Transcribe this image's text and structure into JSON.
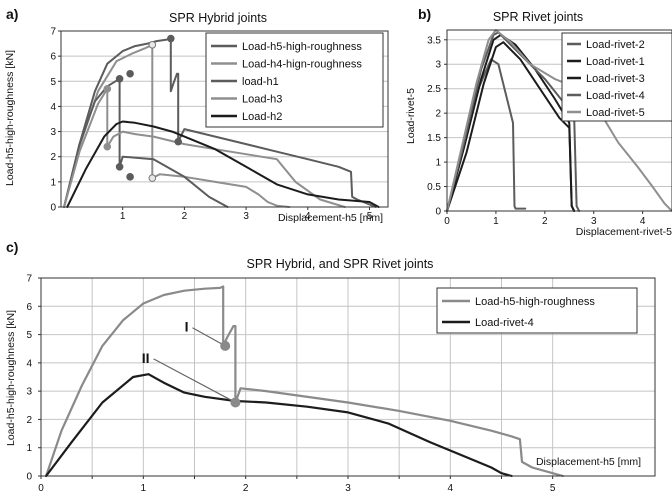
{
  "colors": {
    "grey_dark": "#5c5c5c",
    "grey_light": "#8f8f8f",
    "black": "#1c1c1c",
    "marker_hollow": "#e8e8e8"
  },
  "chart_data": [
    {
      "type": "line",
      "panel_label": "a)",
      "title": "SPR  Hybrid joints",
      "xlabel": "Displacement-h5 [mm]",
      "ylabel": "Load-h5-high-roughness [kN]",
      "xlim": [
        0,
        5.3
      ],
      "ylim": [
        0,
        7
      ],
      "xticks": [
        1,
        2,
        3,
        4,
        5
      ],
      "yticks": [
        0,
        1,
        2,
        3,
        4,
        5,
        6,
        7
      ],
      "grid": "horizontal",
      "legend_position": "top-right",
      "series": [
        {
          "name": "Load-h5-high-roughness",
          "color": "#5c5c5c",
          "width": 2,
          "x": [
            0.05,
            0.3,
            0.55,
            0.75,
            1.0,
            1.2,
            1.4,
            1.55,
            1.7,
            1.78,
            1.78,
            1.82,
            1.88,
            1.9,
            1.9,
            2.0,
            2.5,
            3.0,
            3.5,
            4.0,
            4.5,
            4.7,
            4.72,
            4.8,
            5.0,
            5.1
          ],
          "y": [
            0,
            2.5,
            4.6,
            5.7,
            6.2,
            6.4,
            6.5,
            6.6,
            6.65,
            6.7,
            4.6,
            4.9,
            5.3,
            5.3,
            2.6,
            3.1,
            2.8,
            2.5,
            2.2,
            1.9,
            1.6,
            1.4,
            0.4,
            0.3,
            0.1,
            0
          ]
        },
        {
          "name": "Load-h4-hign-roughness",
          "color": "#8f8f8f",
          "width": 2,
          "x": [
            0.05,
            0.3,
            0.6,
            0.9,
            1.15,
            1.35,
            1.48,
            1.48,
            1.6,
            2.0,
            2.5,
            3.0,
            3.2,
            3.35,
            3.5,
            3.7
          ],
          "y": [
            0,
            2.4,
            4.6,
            5.8,
            6.1,
            6.3,
            6.45,
            1.15,
            1.3,
            1.2,
            1.0,
            0.8,
            0.5,
            0.2,
            0.05,
            0
          ]
        },
        {
          "name": "load-h1",
          "color": "#5c5c5c",
          "width": 2,
          "x": [
            0.05,
            0.3,
            0.55,
            0.75,
            0.95,
            0.95,
            1.0,
            1.5,
            2.0,
            2.4,
            2.7
          ],
          "y": [
            0,
            2.5,
            4.2,
            4.8,
            5.1,
            1.6,
            2.0,
            1.9,
            1.2,
            0.4,
            0
          ]
        },
        {
          "name": "Load-h3",
          "color": "#8f8f8f",
          "width": 2,
          "x": [
            0.05,
            0.3,
            0.6,
            0.75,
            0.75,
            0.85,
            1.0,
            1.2,
            1.5,
            2.0,
            2.5,
            3.0,
            3.5,
            3.8,
            4.2,
            4.6
          ],
          "y": [
            0,
            2.2,
            4.1,
            4.7,
            2.4,
            2.8,
            3.0,
            2.9,
            2.8,
            2.5,
            2.3,
            2.1,
            1.9,
            1.0,
            0.3,
            0
          ]
        },
        {
          "name": "Load-h2",
          "color": "#1c1c1c",
          "width": 2,
          "x": [
            0.1,
            0.4,
            0.7,
            0.9,
            1.0,
            1.2,
            1.5,
            1.8,
            2.0,
            2.5,
            3.0,
            3.5,
            4.0,
            4.5,
            5.0,
            5.15
          ],
          "y": [
            0,
            1.5,
            2.8,
            3.3,
            3.4,
            3.35,
            3.2,
            3.0,
            2.8,
            2.3,
            1.6,
            0.9,
            0.5,
            0.3,
            0.2,
            0
          ]
        }
      ],
      "markers": [
        {
          "x": 1.78,
          "y": 6.7,
          "series": "Load-h5-high-roughness"
        },
        {
          "x": 1.9,
          "y": 2.6,
          "series": "Load-h5-high-roughness"
        },
        {
          "x": 1.48,
          "y": 6.45,
          "series": "Load-h4-hign-roughness",
          "hollow": true
        },
        {
          "x": 1.48,
          "y": 1.15,
          "series": "Load-h4-hign-roughness",
          "hollow": true
        },
        {
          "x": 0.95,
          "y": 5.1,
          "series": "load-h1"
        },
        {
          "x": 0.95,
          "y": 1.6,
          "series": "load-h1"
        },
        {
          "x": 1.12,
          "y": 5.3,
          "series": "load-h1"
        },
        {
          "x": 1.12,
          "y": 1.2,
          "series": "load-h1"
        },
        {
          "x": 0.75,
          "y": 4.7,
          "series": "Load-h3"
        },
        {
          "x": 0.75,
          "y": 2.4,
          "series": "Load-h3"
        }
      ]
    },
    {
      "type": "line",
      "panel_label": "b)",
      "title": "SPR  Rivet joints",
      "xlabel": "Displacement-rivet-5",
      "ylabel": "Load-rivet-5",
      "xlim": [
        0,
        4.6
      ],
      "ylim": [
        0,
        3.7
      ],
      "xticks": [
        0,
        1,
        2,
        3,
        4
      ],
      "yticks": [
        0,
        0.5,
        1,
        1.5,
        2,
        2.5,
        3,
        3.5
      ],
      "grid": "horizontal",
      "legend_position": "top-right",
      "series": [
        {
          "name": "Load-rivet-2",
          "color": "#5c5c5c",
          "width": 2,
          "x": [
            0,
            0.3,
            0.6,
            0.9,
            1.05,
            1.2,
            1.35,
            1.38,
            1.4,
            1.6
          ],
          "y": [
            0,
            1.2,
            2.4,
            3.1,
            3.0,
            2.4,
            1.8,
            0.1,
            0.05,
            0.05
          ]
        },
        {
          "name": "Load-rivet-1",
          "color": "#1c1c1c",
          "width": 2,
          "x": [
            0,
            0.35,
            0.7,
            0.95,
            1.1,
            1.4,
            1.8,
            2.2,
            2.5,
            2.55,
            2.6
          ],
          "y": [
            0,
            1.3,
            2.7,
            3.5,
            3.6,
            3.4,
            2.9,
            2.3,
            1.8,
            0.1,
            0
          ]
        },
        {
          "name": "Load-rivet-3",
          "color": "#1c1c1c",
          "width": 2,
          "x": [
            0,
            0.4,
            0.75,
            1.0,
            1.15,
            1.5,
            1.9,
            2.3,
            2.5,
            2.55,
            2.6
          ],
          "y": [
            0,
            1.2,
            2.6,
            3.35,
            3.45,
            3.1,
            2.5,
            1.9,
            1.7,
            0.1,
            0
          ]
        },
        {
          "name": "Load-rivet-4",
          "color": "#5c5c5c",
          "width": 2,
          "x": [
            0,
            0.35,
            0.7,
            0.95,
            1.05,
            1.5,
            2.0,
            2.4,
            2.6,
            2.65,
            2.7
          ],
          "y": [
            0,
            1.4,
            2.9,
            3.6,
            3.65,
            3.2,
            2.7,
            2.2,
            1.9,
            0.1,
            0
          ]
        },
        {
          "name": "Load-rivet-5",
          "color": "#8f8f8f",
          "width": 2,
          "x": [
            0,
            0.3,
            0.6,
            0.85,
            1.0,
            1.3,
            1.7,
            2.2,
            2.7,
            3.0,
            3.2,
            3.5,
            3.9,
            4.2,
            4.45,
            4.6
          ],
          "y": [
            0,
            1.3,
            2.6,
            3.5,
            3.7,
            3.45,
            3.0,
            2.7,
            2.5,
            2.3,
            1.9,
            1.4,
            0.9,
            0.5,
            0.15,
            0
          ]
        }
      ]
    },
    {
      "type": "line",
      "panel_label": "c)",
      "title": "SPR Hybrid, and SPR Rivet joints",
      "xlabel": "Displacement-h5 [mm]",
      "ylabel": "Load-h5-high-roughness [kN]",
      "xlim": [
        0,
        6
      ],
      "ylim": [
        0,
        7
      ],
      "xticks": [
        0,
        0.5,
        1,
        1.5,
        2,
        2.5,
        3,
        3.5,
        4,
        4.5,
        5
      ],
      "xtick_labels": [
        "0",
        "",
        "1",
        "",
        "2",
        "",
        "3",
        "",
        "4",
        "",
        "5"
      ],
      "yticks": [
        0,
        1,
        2,
        3,
        4,
        5,
        6,
        7
      ],
      "grid": "both",
      "legend_position": "top-right",
      "series": [
        {
          "name": "Load-h5-high-roughness",
          "color": "#8a8a8a",
          "width": 2.2,
          "x": [
            0.05,
            0.2,
            0.4,
            0.6,
            0.8,
            1.0,
            1.2,
            1.4,
            1.6,
            1.75,
            1.78,
            1.78,
            1.82,
            1.88,
            1.9,
            1.9,
            1.95,
            2.2,
            2.5,
            3.0,
            3.5,
            4.0,
            4.4,
            4.6,
            4.68,
            4.7,
            4.8,
            5.0,
            5.1
          ],
          "y": [
            0,
            1.6,
            3.2,
            4.6,
            5.5,
            6.1,
            6.4,
            6.55,
            6.62,
            6.65,
            6.7,
            4.6,
            4.9,
            5.3,
            5.3,
            2.6,
            3.1,
            3.0,
            2.85,
            2.6,
            2.3,
            1.95,
            1.6,
            1.4,
            1.3,
            0.5,
            0.3,
            0.1,
            0
          ]
        },
        {
          "name": "Load-rivet-4",
          "color": "#1c1c1c",
          "width": 2.2,
          "x": [
            0.05,
            0.3,
            0.6,
            0.9,
            1.05,
            1.2,
            1.4,
            1.6,
            1.9,
            2.2,
            2.6,
            3.0,
            3.4,
            3.8,
            4.2,
            4.4,
            4.5,
            4.6
          ],
          "y": [
            0,
            1.2,
            2.6,
            3.5,
            3.6,
            3.3,
            2.95,
            2.8,
            2.65,
            2.6,
            2.45,
            2.25,
            1.85,
            1.2,
            0.6,
            0.3,
            0.1,
            0
          ]
        }
      ],
      "markers": [
        {
          "x": 1.8,
          "y": 4.6,
          "series": "Load-h5-high-roughness"
        },
        {
          "x": 1.9,
          "y": 2.6,
          "series": "Load-h5-high-roughness"
        }
      ],
      "annotations": [
        {
          "text": "I",
          "x": 1.48,
          "y": 5.1,
          "arrow_to": [
            1.8,
            4.6
          ]
        },
        {
          "text": "II",
          "x": 1.1,
          "y": 4.0,
          "arrow_to": [
            1.9,
            2.6
          ]
        }
      ]
    }
  ]
}
